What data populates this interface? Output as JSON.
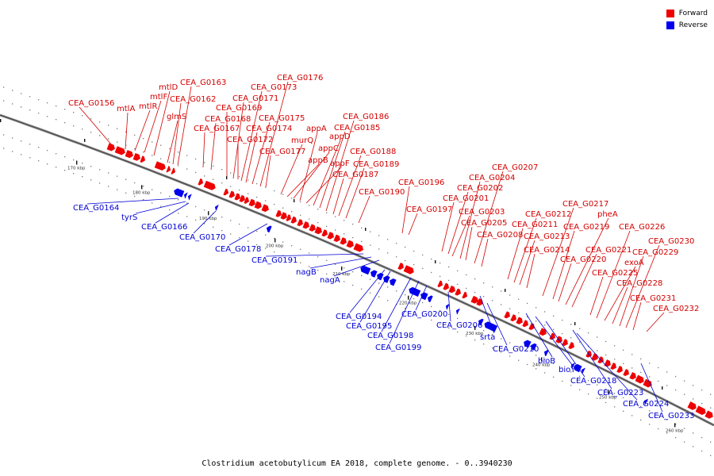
{
  "caption": "Clostridium acetobutylicum EA 2018, complete genome. - 0..3940230",
  "legend": [
    {
      "label": "Forward",
      "color": "#ee0000"
    },
    {
      "label": "Reverse",
      "color": "#0000ee"
    }
  ],
  "colors": {
    "forward": "#ee0000",
    "reverse": "#0000ee",
    "forward_text": "#d40000",
    "reverse_text": "#0000d4"
  },
  "ticks": [
    "170 kbp",
    "180 kbp",
    "190 kbp",
    "200 kbp",
    "210 kbp",
    "220 kbp",
    "230 kbp",
    "240 kbp",
    "250 kbp",
    "260 kbp"
  ],
  "forward_genes": [
    "CEA_G0156",
    "mtlA",
    "mtlR",
    "mtlF",
    "mtlD",
    "glmS",
    "CEA_G0162",
    "CEA_G0163",
    "CEA_G0167",
    "CEA_G0168",
    "CEA_G0169",
    "CEA_G0171",
    "CEA_G0172",
    "CEA_G0173",
    "CEA_G0174",
    "CEA_G0175",
    "CEA_G0176",
    "CEA_G0177",
    "murQ",
    "appB",
    "appC",
    "appA",
    "appF",
    "appD",
    "CEA_G0185",
    "CEA_G0186",
    "CEA_G0187",
    "CEA_G0188",
    "CEA_G0189",
    "CEA_G0190",
    "CEA_G0196",
    "CEA_G0197",
    "CEA_G0201",
    "CEA_G0202",
    "CEA_G0203",
    "CEA_G0204",
    "CEA_G0205",
    "CEA_G0207",
    "CEA_G0208",
    "CEA_G0211",
    "CEA_G0212",
    "CEA_G0213",
    "CEA_G0214",
    "CEA_G0217",
    "CEA_G0219",
    "CEA_G0220",
    "pheA",
    "CEA_G0221",
    "CEA_G0225",
    "CEA_G0226",
    "exoA",
    "CEA_G0228",
    "CEA_G0229",
    "CEA_G0230",
    "CEA_G0231",
    "CEA_G0232"
  ],
  "reverse_genes": [
    "CEA_G0164",
    "tyrS",
    "CEA_G0166",
    "CEA_G0170",
    "CEA_G0178",
    "CEA_G0191",
    "nagB",
    "nagA",
    "CEA_G0194",
    "CEA_G0195",
    "CEA_G0198",
    "CEA_G0199",
    "CEA_G0200",
    "CEA_G0206",
    "srta",
    "CEA_G0210",
    "bioB",
    "bioY",
    "CEA_G0218",
    "CEA_G0223",
    "CEA_G0224",
    "CEA_G0233"
  ]
}
